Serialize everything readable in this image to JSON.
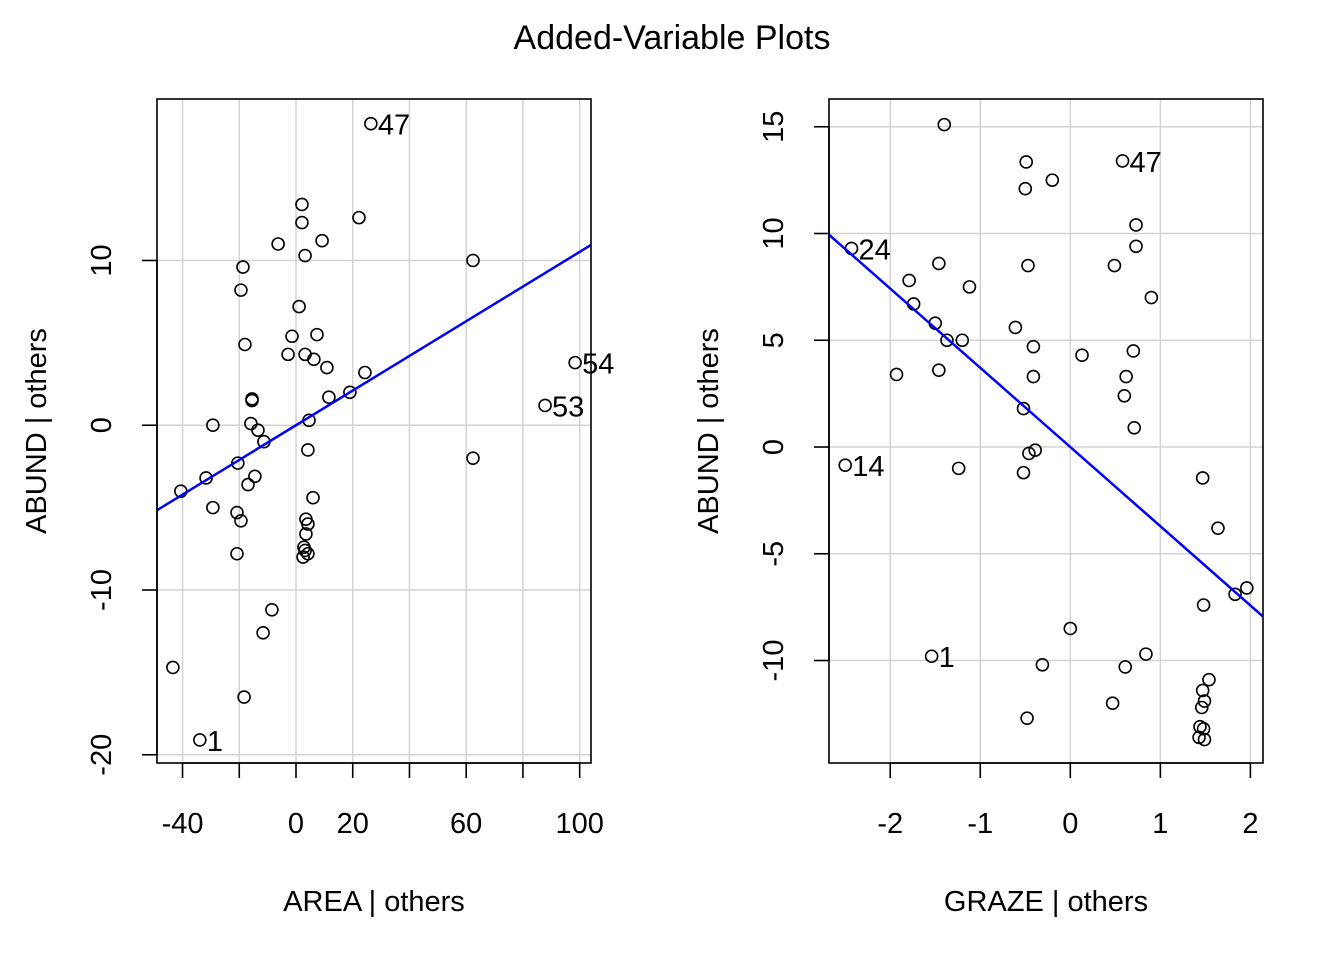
{
  "title": "Added-Variable Plots",
  "chart_data": [
    {
      "type": "scatter",
      "xlabel": "AREA | others",
      "ylabel": "ABUND  | others",
      "xlim": [
        -49,
        104
      ],
      "ylim": [
        -20.5,
        19.8
      ],
      "xticks": [
        -40,
        -20,
        0,
        20,
        40,
        60,
        80,
        100
      ],
      "xtick_labels": [
        "-40",
        "",
        "0",
        "20",
        "",
        "60",
        "",
        "100"
      ],
      "yticks": [
        -20,
        -10,
        0,
        10
      ],
      "ytick_labels": [
        "-20",
        "-10",
        "0",
        "10"
      ],
      "grid": true,
      "fit_line": {
        "slope": 0.1052,
        "intercept": 0.0,
        "color": "#0000ff"
      },
      "points": [
        [
          26.4,
          18.3,
          "47"
        ],
        [
          2.1,
          13.4
        ],
        [
          2.1,
          12.3
        ],
        [
          22.2,
          12.6
        ],
        [
          -6.3,
          11.0
        ],
        [
          9.2,
          11.2
        ],
        [
          3.2,
          10.3
        ],
        [
          62.4,
          10.0
        ],
        [
          -18.7,
          9.6
        ],
        [
          -19.4,
          8.2
        ],
        [
          1.1,
          7.2
        ],
        [
          -18.0,
          4.9
        ],
        [
          -1.4,
          5.4
        ],
        [
          7.4,
          5.5
        ],
        [
          -2.8,
          4.3
        ],
        [
          3.2,
          4.3
        ],
        [
          6.3,
          4.0
        ],
        [
          10.9,
          3.5
        ],
        [
          24.3,
          3.2
        ],
        [
          98.4,
          3.8,
          "54"
        ],
        [
          19.0,
          2.0
        ],
        [
          11.6,
          1.7
        ],
        [
          -15.5,
          1.6
        ],
        [
          -15.5,
          1.5
        ],
        [
          87.8,
          1.2,
          "53"
        ],
        [
          4.6,
          0.3
        ],
        [
          -29.3,
          0.0
        ],
        [
          -15.9,
          0.1
        ],
        [
          -13.4,
          -0.3
        ],
        [
          -11.3,
          -1.0
        ],
        [
          4.2,
          -1.5
        ],
        [
          62.4,
          -2.0
        ],
        [
          -20.5,
          -2.3
        ],
        [
          -31.7,
          -3.2
        ],
        [
          -14.5,
          -3.1
        ],
        [
          -16.9,
          -3.6
        ],
        [
          -40.6,
          -4.0
        ],
        [
          6.0,
          -4.4
        ],
        [
          -29.3,
          -5.0
        ],
        [
          -20.8,
          -5.3
        ],
        [
          -19.4,
          -5.8
        ],
        [
          3.5,
          -5.7
        ],
        [
          4.2,
          -6.0
        ],
        [
          3.5,
          -6.6
        ],
        [
          2.8,
          -7.4
        ],
        [
          -20.8,
          -7.8
        ],
        [
          3.2,
          -7.6
        ],
        [
          4.2,
          -7.8
        ],
        [
          2.5,
          -8.0
        ],
        [
          -8.5,
          -11.2
        ],
        [
          -11.6,
          -12.6
        ],
        [
          -43.4,
          -14.7
        ],
        [
          -18.3,
          -16.5
        ],
        [
          -33.9,
          -19.1,
          "1"
        ]
      ]
    },
    {
      "type": "scatter",
      "xlabel": "GRAZE | others",
      "ylabel": "ABUND  | others",
      "xlim": [
        -2.68,
        2.14
      ],
      "ylim": [
        -14.8,
        16.3
      ],
      "xticks": [
        -2,
        -1,
        0,
        1,
        2
      ],
      "xtick_labels": [
        "-2",
        "-1",
        "0",
        "1",
        "2"
      ],
      "yticks": [
        -10,
        -5,
        0,
        5,
        10,
        15
      ],
      "ytick_labels": [
        "-10",
        "-5",
        "0",
        "5",
        "10",
        "15"
      ],
      "grid": true,
      "fit_line": {
        "slope": -3.71,
        "intercept": 0.0,
        "color": "#0000ff"
      },
      "points": [
        [
          -1.4,
          15.1
        ],
        [
          -0.49,
          13.35
        ],
        [
          0.58,
          13.4,
          "47"
        ],
        [
          -0.5,
          12.1
        ],
        [
          -0.2,
          12.5
        ],
        [
          0.73,
          10.4
        ],
        [
          0.73,
          9.4
        ],
        [
          -2.43,
          9.3,
          "24"
        ],
        [
          -1.79,
          7.8
        ],
        [
          -1.46,
          8.6
        ],
        [
          -0.47,
          8.5
        ],
        [
          0.49,
          8.5
        ],
        [
          -1.12,
          7.5
        ],
        [
          0.9,
          7.0
        ],
        [
          -1.74,
          6.7
        ],
        [
          -1.5,
          5.8
        ],
        [
          -0.61,
          5.6
        ],
        [
          -1.37,
          5.0
        ],
        [
          -1.2,
          5.0
        ],
        [
          -0.41,
          4.7
        ],
        [
          0.7,
          4.5
        ],
        [
          0.13,
          4.3
        ],
        [
          -1.93,
          3.4
        ],
        [
          -1.46,
          3.6
        ],
        [
          -0.41,
          3.3
        ],
        [
          0.62,
          3.3
        ],
        [
          0.6,
          2.4
        ],
        [
          -0.52,
          1.8
        ],
        [
          0.71,
          0.9
        ],
        [
          -0.39,
          -0.15
        ],
        [
          -0.46,
          -0.3
        ],
        [
          -2.5,
          -0.85,
          "14"
        ],
        [
          -1.24,
          -1.0
        ],
        [
          -0.52,
          -1.2
        ],
        [
          1.47,
          -1.45
        ],
        [
          1.64,
          -3.8
        ],
        [
          1.96,
          -6.6
        ],
        [
          1.83,
          -6.9
        ],
        [
          1.48,
          -7.4
        ],
        [
          0.0,
          -8.5
        ],
        [
          -1.54,
          -9.8,
          "1"
        ],
        [
          0.84,
          -9.7
        ],
        [
          -0.31,
          -10.2
        ],
        [
          0.61,
          -10.3
        ],
        [
          1.54,
          -10.9
        ],
        [
          1.47,
          -11.4
        ],
        [
          1.49,
          -11.9
        ],
        [
          1.46,
          -12.2
        ],
        [
          0.47,
          -12.0
        ],
        [
          -0.48,
          -12.7
        ],
        [
          1.44,
          -13.1
        ],
        [
          1.48,
          -13.2
        ],
        [
          1.43,
          -13.6
        ],
        [
          1.49,
          -13.7
        ]
      ]
    }
  ]
}
